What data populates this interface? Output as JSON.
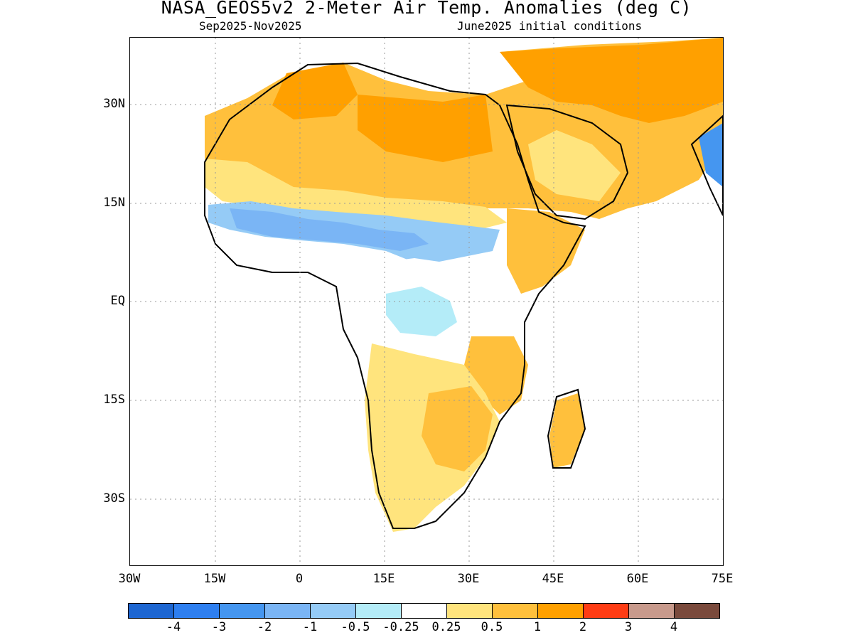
{
  "title": "NASA_GEOS5v2 2-Meter Air Temp. Anomalies (deg C)",
  "subtitle_left": "Sep2025-Nov2025",
  "subtitle_right": "June2025 initial conditions",
  "map": {
    "region": "Africa and Arabian Peninsula",
    "lat_ticks": [
      "30N",
      "15N",
      "EQ",
      "15S",
      "30S"
    ],
    "lon_ticks": [
      "30W",
      "15W",
      "0",
      "15E",
      "30E",
      "45E",
      "60E",
      "75E"
    ],
    "grid": "dotted"
  },
  "colorbar": {
    "colors": [
      "#1d66d1",
      "#2e7ff0",
      "#4596f0",
      "#7ab5f5",
      "#95cbf6",
      "#b4ecf8",
      "#ffffff",
      "#ffe47d",
      "#ffc03c",
      "#ffa000",
      "#ff3c14",
      "#c89a8c",
      "#7a4a3c"
    ],
    "labels": [
      "-4",
      "-3",
      "-2",
      "-1",
      "-0.5",
      "-0.25",
      "0.25",
      "0.5",
      "1",
      "2",
      "3",
      "4"
    ]
  }
}
